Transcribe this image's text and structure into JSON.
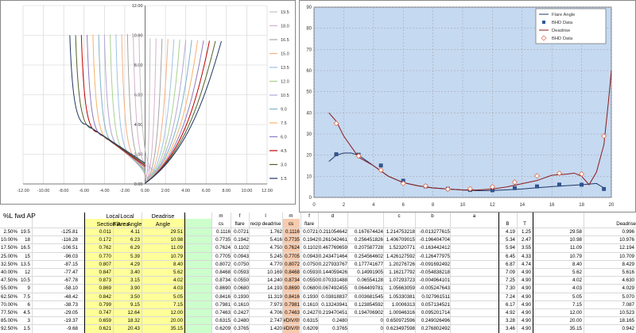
{
  "colors": {
    "plot_bg": "#c5d9f1",
    "flare": "#1f3864",
    "bhd_flare": "#2f5597",
    "deadrise": "#8b1a1a",
    "bhd_dead": "#e07a5f",
    "yellow": "#ffff99",
    "green": "#ccffcc",
    "orange": "#f8cbad"
  },
  "chart_data": [
    {
      "type": "line",
      "x_ticks": [
        "-12.00",
        "-10.00",
        "-8.00",
        "-6.00",
        "-4.00",
        "-2.00",
        "0.00",
        "2.00",
        "4.00",
        "6.00",
        "8.00",
        "10.00",
        "12.00"
      ],
      "y_ticks": [
        "0.00",
        "2.00",
        "4.00",
        "6.00",
        "8.00",
        "10.00",
        "12.00"
      ],
      "xlim": [
        -12,
        12
      ],
      "ylim": [
        0,
        12
      ],
      "grid": true,
      "legend_position": "right",
      "series": [
        {
          "name": "19.5",
          "color": "#c0c0c0"
        },
        {
          "name": "18.0",
          "color": "#d8b0d0"
        },
        {
          "name": "16.5",
          "color": "#a6a6a6"
        },
        {
          "name": "15.0",
          "color": "#f4b183"
        },
        {
          "name": "13.5",
          "color": "#9dc3e6"
        },
        {
          "name": "12.0",
          "color": "#a9d18e"
        },
        {
          "name": "10.5",
          "color": "#b4a7d6"
        },
        {
          "name": "9.0",
          "color": "#7fb3c8"
        },
        {
          "name": "7.5",
          "color": "#f6b26b"
        },
        {
          "name": "6.0",
          "color": "#8e7cc3"
        },
        {
          "name": "4.5",
          "color": "#c00000"
        },
        {
          "name": "3.0",
          "color": "#4f6228"
        },
        {
          "name": "1.5",
          "color": "#1f3864"
        }
      ]
    },
    {
      "type": "line",
      "x_ticks": [
        "0",
        "2",
        "4",
        "6",
        "8",
        "10",
        "12",
        "14",
        "16",
        "18",
        "20"
      ],
      "y_ticks": [
        "0",
        "10",
        "20",
        "30",
        "40",
        "50",
        "60",
        "70",
        "80",
        "90"
      ],
      "xlim": [
        0,
        20
      ],
      "ylim": [
        0,
        90
      ],
      "grid": true,
      "legend_position": "top-right",
      "series": [
        {
          "name": "Flare Angle",
          "style": "line",
          "color": "#1f3864",
          "x": [
            1,
            1.5,
            2,
            2.5,
            3,
            4,
            5,
            6,
            7,
            8,
            9,
            10,
            11,
            12,
            13,
            14,
            15,
            16,
            17,
            18,
            19,
            19.5
          ],
          "y": [
            17,
            20,
            21,
            21,
            20,
            15,
            10,
            7,
            5.5,
            4.5,
            4,
            3.5,
            3.2,
            3.3,
            3.6,
            4,
            4.6,
            5.1,
            5.6,
            6,
            6.6,
            4.5
          ]
        },
        {
          "name": "BHD Data",
          "style": "markers",
          "marker": "square",
          "color": "#2f5597",
          "x": [
            1.5,
            3,
            4.5,
            6,
            7.5,
            9,
            10.5,
            12,
            13.5,
            15,
            16.5,
            18,
            19.5
          ],
          "y": [
            20.4,
            20.2,
            15.1,
            7.9,
            5.2,
            4.1,
            3.5,
            3.4,
            4.4,
            5.2,
            6.1,
            6,
            4
          ]
        },
        {
          "name": "Deadrise",
          "style": "line",
          "color": "#8b1a1a",
          "x": [
            1,
            1.5,
            2,
            3,
            4,
            5,
            6,
            7,
            8,
            9,
            10,
            11,
            12,
            13,
            14,
            15,
            16,
            17,
            17.5,
            18,
            18.5,
            19,
            19.5,
            19.8,
            20
          ],
          "y": [
            40,
            36,
            29,
            19,
            15,
            10,
            7,
            5.5,
            4.5,
            4,
            3.5,
            3.5,
            4,
            5,
            6.5,
            8,
            10.5,
            11,
            11.5,
            10,
            6,
            12,
            25,
            45,
            60
          ]
        },
        {
          "name": "BHD Data",
          "style": "markers",
          "marker": "diamond",
          "color": "#e07a5f",
          "x": [
            1.5,
            3,
            4.5,
            6,
            7.5,
            9,
            10.5,
            12,
            13.5,
            15,
            16.5,
            18,
            19.5
          ],
          "y": [
            35,
            19.6,
            12.9,
            6.6,
            5.4,
            3.9,
            4.1,
            5,
            7.2,
            10.2,
            11.4,
            11.1,
            29
          ]
        }
      ]
    }
  ],
  "sheet": {
    "title": "%L fwd AP",
    "headers": {
      "local_section": "Local",
      "section_area": "Section Area",
      "local_flare": "Local",
      "flare_angle": "Flare Angle",
      "deadrise_top": "Deadrise",
      "deadrise_angle": "Angle",
      "m": "m",
      "f": "f",
      "l": "l",
      "cs": "cs",
      "flare": "flare",
      "recip_deadrise": "recip deadrise",
      "m2": "m",
      "f2": "f",
      "d": "d",
      "c": "c",
      "b": "b",
      "a": "a",
      "cs2": "cs",
      "flare2": "flare",
      "B": "B",
      "T": "T",
      "deadrise_right": "Deadrise"
    },
    "rows": [
      [
        "2.50%",
        "19.5",
        "-125.81",
        "0.011",
        "4.11",
        "29.51",
        "0.1116",
        "0.0721",
        "1.762",
        "0.1116",
        "0.0721",
        "0.211054642",
        "0.167674424",
        "1.214753218",
        "-0.013277615",
        "4.19",
        "1.25",
        "29.58",
        "0.996"
      ],
      [
        "10.00%",
        "18",
        "-116.28",
        "0.172",
        "6.23",
        "10.98",
        "0.7735",
        "0.1942",
        "5.416",
        "0.7735",
        "0.1942",
        "0.261042461",
        "0.256451826",
        "1.406709015",
        "-0.196404704",
        "5.34",
        "2.47",
        "10.98",
        "10.976"
      ],
      [
        "17.50%",
        "16.5",
        "-106.51",
        "0.762",
        "6.29",
        "11.09",
        "0.7624",
        "0.1102",
        "4.750",
        "0.7624",
        "0.1102",
        "0.467769659",
        "0.207587728",
        "1.52320771",
        "-0.163442412",
        "5.94",
        "3.55",
        "11.09",
        "12.194"
      ],
      [
        "25.00%",
        "15",
        "-96.03",
        "0.770",
        "5.39",
        "10.79",
        "0.7705",
        "0.0943",
        "5.245",
        "0.7705",
        "0.0943",
        "0.243471464",
        "0.254564602",
        "1.426127592",
        "-0.126477975",
        "6.45",
        "4.33",
        "10.79",
        "10.709"
      ],
      [
        "32.50%",
        "13.5",
        "-87.15",
        "0.807",
        "4.29",
        "8.40",
        "0.8072",
        "0.0750",
        "4.770",
        "0.8072",
        "0.0750",
        "0.227933767",
        "0.177741677",
        "1.20276726",
        "-0.091692492",
        "6.87",
        "4.74",
        "8.40",
        "8.429"
      ],
      [
        "40.00%",
        "12",
        "-77.47",
        "0.847",
        "3.40",
        "5.62",
        "0.8468",
        "0.0593",
        "10.169",
        "0.8468",
        "0.0593",
        "0.144059426",
        "0.14991905",
        "1.16217792",
        "-0.054838218",
        "7.09",
        "4.90",
        "5.62",
        "5.616"
      ],
      [
        "47.50%",
        "10.5",
        "-67.78",
        "0.873",
        "3.15",
        "4.02",
        "0.8734",
        "0.0550",
        "14.240",
        "0.8734",
        "0.0550",
        "0.070331488",
        "0.06554128",
        "1.07293723",
        "-0.004964101",
        "7.25",
        "4.90",
        "4.02",
        "4.630"
      ],
      [
        "55.00%",
        "9",
        "-58.10",
        "0.869",
        "3.90",
        "4.03",
        "0.8690",
        "0.0680",
        "14.193",
        "0.8690",
        "0.0680",
        "0.067492455",
        "0.064409781",
        "1.05663059",
        "-0.005247643",
        "7.30",
        "4.90",
        "4.03",
        "4.029"
      ],
      [
        "62.50%",
        "7.5",
        "-48.42",
        "0.842",
        "3.50",
        "5.05",
        "0.8416",
        "0.1930",
        "11.319",
        "0.8416",
        "0.1930",
        "0.03818837",
        "0.003681545",
        "1.05330381",
        "0.027961511",
        "7.24",
        "4.90",
        "5.05",
        "5.070"
      ],
      [
        "70.00%",
        "6",
        "-38.73",
        "0.799",
        "9.15",
        "7.15",
        "0.7981",
        "0.1610",
        "7.973",
        "0.7981",
        "0.1610",
        "0.13243941",
        "0.123854592",
        "1.0006313",
        "0.057134521",
        "6.17",
        "4.90",
        "7.15",
        "7.087"
      ],
      [
        "77.50%",
        "4.5",
        "-29.05",
        "0.747",
        "12.64",
        "12.00",
        "0.7463",
        "0.2427",
        "4.706",
        "0.7463",
        "0.2427",
        "0.219470451",
        "0.194706902",
        "1.00946316",
        "0.095201714",
        "4.92",
        "4.90",
        "12.00",
        "10.523"
      ],
      [
        "85.00%",
        "3",
        "-19.37",
        "0.659",
        "18.32",
        "20.00",
        "0.6315",
        "0.2480",
        "2.747",
        "#DIV/0!",
        "0.6315",
        "0.2480",
        "0",
        "0.650972596",
        "0.249026496",
        "3.28",
        "4.90",
        "20.00",
        "18.165"
      ],
      [
        "92.50%",
        "1.5",
        "-9.68",
        "0.621",
        "20.43",
        "35.15",
        "0.6209",
        "0.3765",
        "1.420",
        "#DIV/0!",
        "0.6209",
        "0.3765",
        "0",
        "0.623497598",
        "0.276802492",
        "3.46",
        "4.90",
        "35.15",
        "0.942"
      ]
    ]
  }
}
